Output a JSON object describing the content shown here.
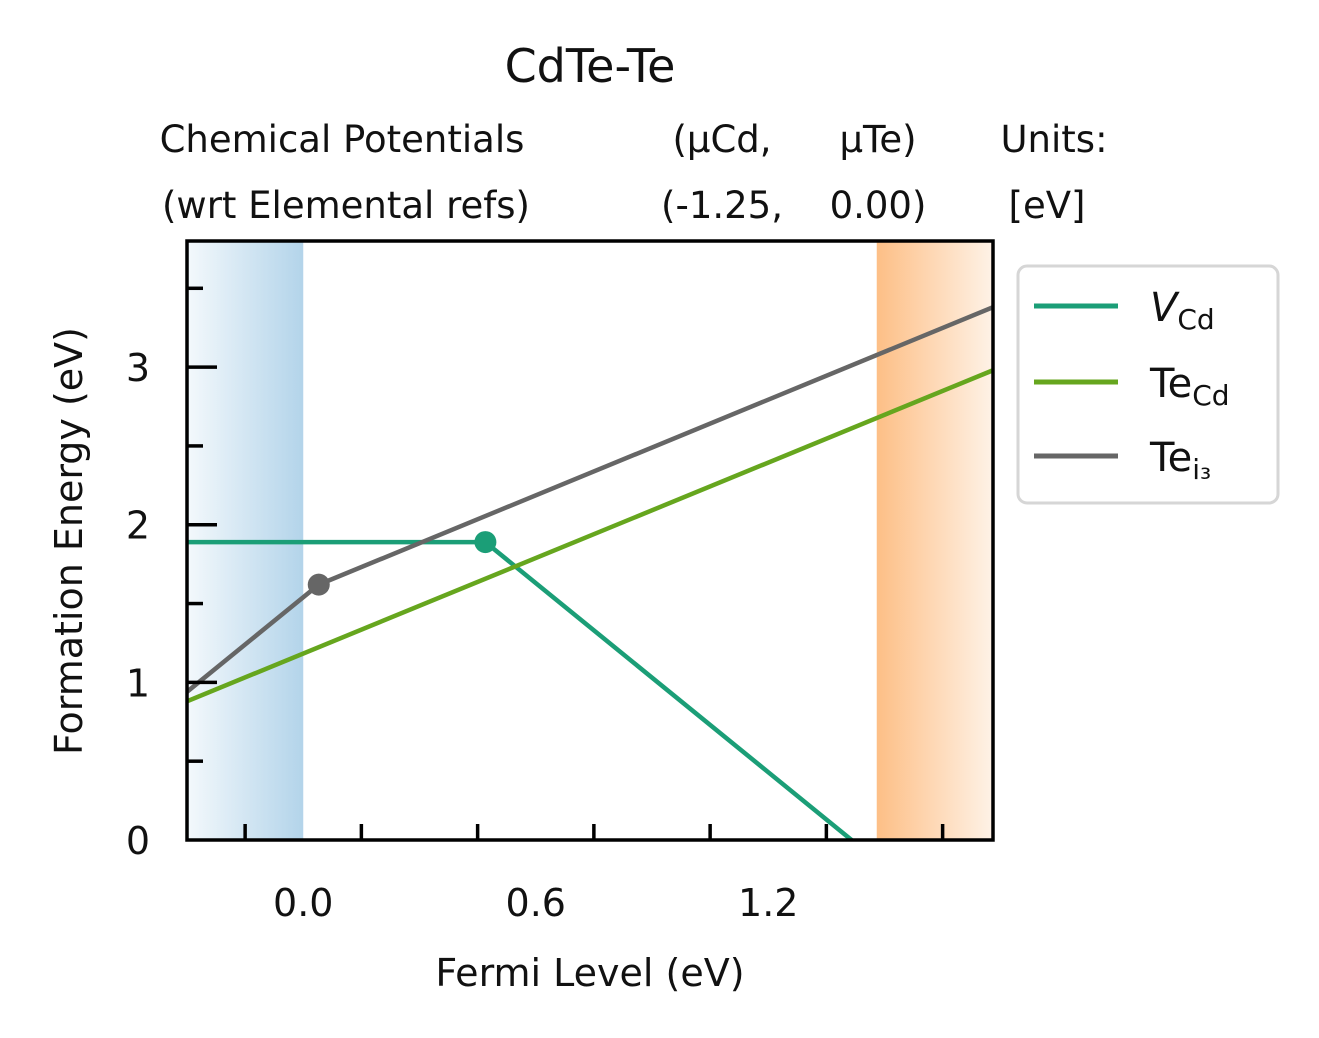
{
  "chart_data": {
    "type": "line",
    "title": "CdTe-Te",
    "header": {
      "left_line1": "Chemical Potentials",
      "left_line2": "(wrt Elemental refs)",
      "mu_cd_label": "(μCd,",
      "mu_te_label": "μTe)",
      "mu_cd_value": "(-1.25,",
      "mu_te_value": "0.00)",
      "units_line1": "Units:",
      "units_line2": "[eV]"
    },
    "xlabel": "Fermi Level (eV)",
    "ylabel": "Formation Energy (eV)",
    "xlim": [
      -0.3,
      1.78
    ],
    "ylim": [
      0,
      3.8
    ],
    "x_ticks": [
      0.0,
      0.6,
      1.2
    ],
    "x_tick_labels": [
      "0.0",
      "0.6",
      "1.2"
    ],
    "y_ticks": [
      0,
      1,
      2,
      3
    ],
    "y_tick_labels": [
      "0",
      "1",
      "2",
      "3"
    ],
    "vbm_region": [
      -0.3,
      0.0
    ],
    "cbm_region": [
      1.48,
      1.78
    ],
    "vbm_color": "#b3d4ea",
    "cbm_color": "#fdbf86",
    "legend_position": "outside-right",
    "series": [
      {
        "name": "V",
        "name_sub": "Cd",
        "name_italic": true,
        "color": "#1b9e77",
        "x": [
          -0.3,
          0.47,
          1.48,
          1.78
        ],
        "y": [
          1.89,
          1.89,
          -0.13,
          -0.73
        ],
        "transitions": [
          {
            "x": 0.47,
            "y": 1.89
          }
        ]
      },
      {
        "name": "Te",
        "name_sub": "Cd",
        "name_italic": false,
        "color": "#66a61e",
        "x": [
          -0.3,
          1.78
        ],
        "y": [
          0.88,
          2.98
        ],
        "transitions": []
      },
      {
        "name": "Te",
        "name_sub": "i₃",
        "name_italic": false,
        "color": "#666666",
        "x": [
          -0.3,
          0.04,
          1.78
        ],
        "y": [
          0.94,
          1.62,
          3.38
        ],
        "transitions": [
          {
            "x": 0.04,
            "y": 1.62
          }
        ]
      }
    ]
  }
}
